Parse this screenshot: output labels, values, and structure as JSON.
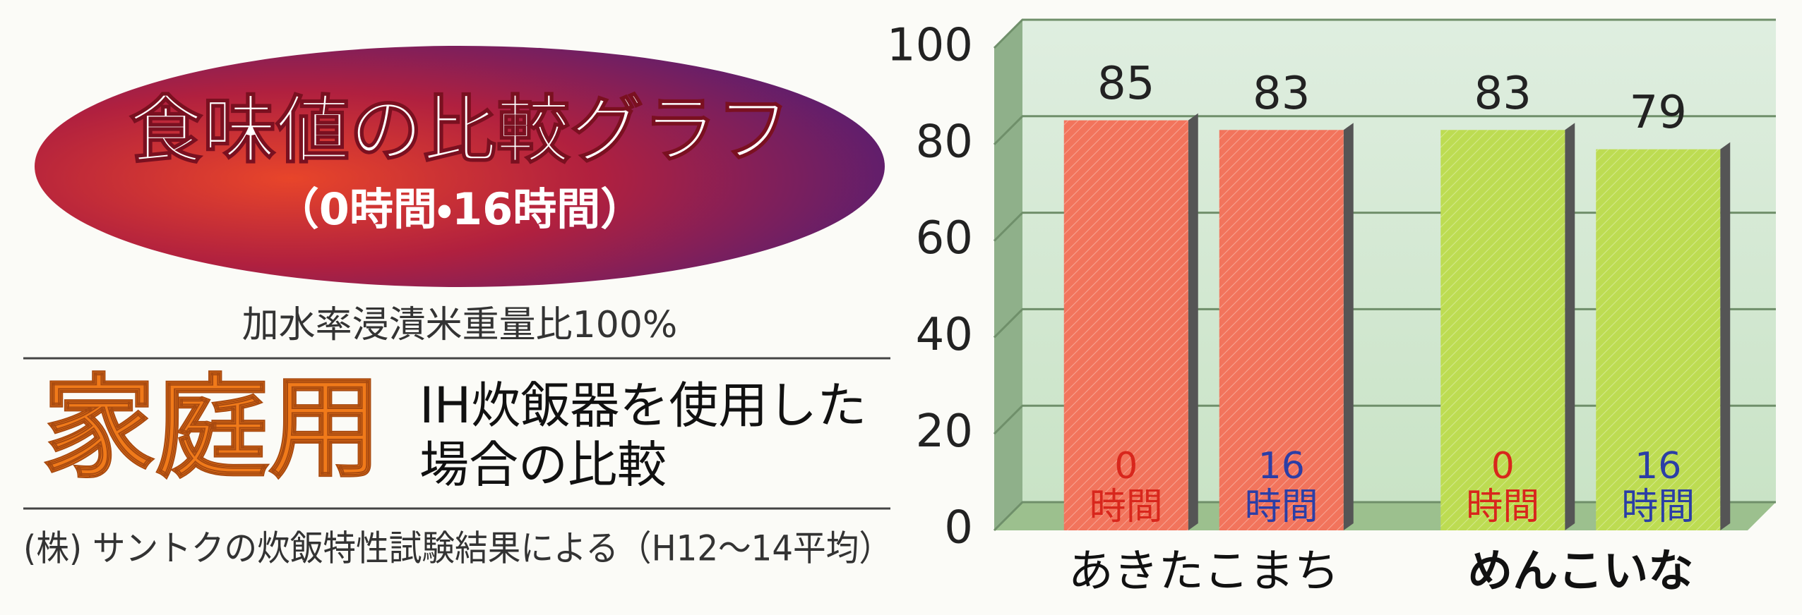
{
  "header": {
    "title": "食味値の比較グラフ",
    "subtitle": "（0時間・16時間）"
  },
  "note": "加水率浸漬米重量比100%",
  "badge": "家庭用",
  "description": [
    "IH炊飯器を使用した",
    "場合の比較"
  ],
  "footnote": "(株) サントクの炊飯特性試験結果による（H12～14平均）",
  "chart_data": {
    "type": "bar",
    "categories": [
      "あきたこまち",
      "めんこいな"
    ],
    "category_colors": [
      "#f2745c",
      "#bddc52"
    ],
    "series": [
      {
        "name": "0",
        "unit": "時間",
        "color": "#d8261c",
        "values": [
          85,
          83
        ]
      },
      {
        "name": "16",
        "unit": "時間",
        "color": "#2b3ea6",
        "values": [
          83,
          79
        ]
      }
    ],
    "ylim": [
      0,
      100
    ],
    "yticks": [
      0,
      20,
      40,
      60,
      80,
      100
    ],
    "grid": true
  }
}
